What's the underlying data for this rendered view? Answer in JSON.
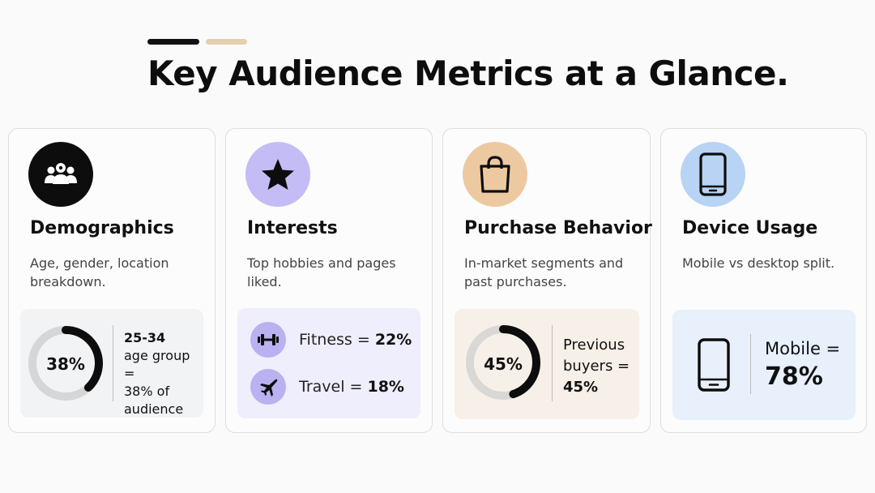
{
  "title": "Key Audience Metrics at a Glance.",
  "colors": {
    "accent_dark": "#111111",
    "accent_tan": "#e6cfae",
    "demographics_icon_bg": "#0d0d0d",
    "interests_icon_bg": "#c4bcf5",
    "purchase_icon_bg": "#edc9a2",
    "device_icon_bg": "#b8d3f4",
    "demographics_panel": "#f2f3f5",
    "interests_panel": "#efeefd",
    "purchase_panel": "#f7f0e8",
    "device_panel": "#e8f0fb"
  },
  "cards": {
    "demographics": {
      "icon": "people-icon",
      "title": "Demographics",
      "description": "Age, gender, location breakdown.",
      "donut_value": 38,
      "donut_label": "38%",
      "stat_line1": "25-34",
      "stat_line2": "age group =",
      "stat_line3": "38% of",
      "stat_line4": "audience"
    },
    "interests": {
      "icon": "star-icon",
      "title": "Interests",
      "description": "Top hobbies and pages liked.",
      "items": [
        {
          "icon": "dumbbell-icon",
          "label": "Fitness = ",
          "value": "22%"
        },
        {
          "icon": "airplane-icon",
          "label": "Travel = ",
          "value": "18%"
        }
      ]
    },
    "purchase": {
      "icon": "shopping-bag-icon",
      "title": "Purchase Behavior",
      "description": "In-market segments and past purchases.",
      "donut_value": 45,
      "donut_label": "45%",
      "stat_line1": "Previous",
      "stat_line2": "buyers =",
      "stat_line3": "45%"
    },
    "device": {
      "icon": "smartphone-icon",
      "title": "Device Usage",
      "description": "Mobile vs desktop split.",
      "stat_label": "Mobile =",
      "stat_value": "78%"
    }
  }
}
